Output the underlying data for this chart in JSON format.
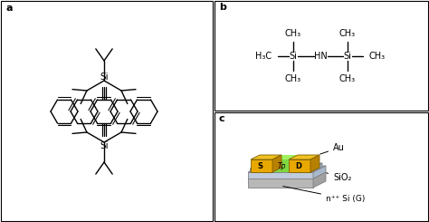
{
  "bg_color": "#ffffff",
  "border_color": "#000000",
  "panel_a_label": "a",
  "panel_b_label": "b",
  "panel_c_label": "c",
  "gold_color": "#E8A800",
  "gold_side": "#B88000",
  "gold_top": "#F0C020",
  "gray_light": "#D0D0D0",
  "gray_mid": "#B0B0B0",
  "gray_dark": "#909090",
  "blue_light": "#C8D8F0",
  "blue_mid": "#A8C0E0",
  "blue_top": "#D8E8F8",
  "green_channel": "#90E060",
  "line_width": 1.0
}
